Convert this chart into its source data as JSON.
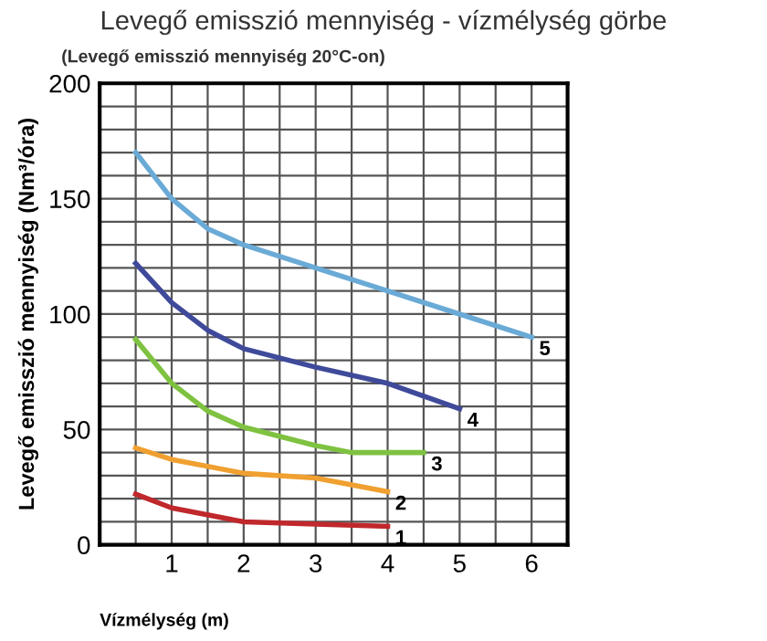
{
  "chart_data": {
    "type": "line",
    "title": "Levegő emisszió mennyiség - vízmélység görbe",
    "subtitle": "(Levegő emisszió mennyiség 20°C-on)",
    "xlabel": "Vízmélység (m)",
    "ylabel": "Levegő emisszió mennyiség (Nm³/óra)",
    "series": [
      {
        "name": "1",
        "color": "#c0282c",
        "x": [
          0.5,
          1,
          2,
          3,
          4
        ],
        "values": [
          22,
          16,
          10,
          9,
          8
        ]
      },
      {
        "name": "2",
        "color": "#f0a030",
        "x": [
          0.5,
          1,
          2,
          3,
          4
        ],
        "values": [
          42,
          37,
          31,
          29,
          23
        ]
      },
      {
        "name": "3",
        "color": "#7fc241",
        "x": [
          0.5,
          1,
          1.5,
          2,
          3,
          3.5,
          4.5
        ],
        "values": [
          89,
          70,
          58,
          51,
          43,
          40,
          40
        ]
      },
      {
        "name": "4",
        "color": "#3f4a9a",
        "x": [
          0.5,
          1,
          1.5,
          2,
          3,
          4,
          5
        ],
        "values": [
          122,
          105,
          93,
          85,
          77,
          70,
          59
        ]
      },
      {
        "name": "5",
        "color": "#6aaad6",
        "x": [
          0.5,
          1,
          1.5,
          2,
          3,
          4,
          5,
          6
        ],
        "values": [
          170,
          150,
          137,
          130,
          120,
          110,
          100,
          90
        ]
      }
    ],
    "xlim": [
      0,
      6.5
    ],
    "ylim": [
      0,
      200
    ],
    "xticks": [
      {
        "value": 0,
        "label": null
      },
      {
        "value": 0.5,
        "label": null
      },
      1,
      {
        "value": 1.5,
        "label": null
      },
      2,
      {
        "value": 2.5,
        "label": null
      },
      3,
      {
        "value": 3.5,
        "label": null
      },
      4,
      {
        "value": 4.5,
        "label": null
      },
      5,
      {
        "value": 5.5,
        "label": null
      },
      6,
      {
        "value": 6.5,
        "label": null
      }
    ],
    "yticks": [
      0,
      {
        "value": 10,
        "label": null
      },
      {
        "value": 20,
        "label": null
      },
      {
        "value": 30,
        "label": null
      },
      {
        "value": 40,
        "label": null
      },
      50,
      {
        "value": 60,
        "label": null
      },
      {
        "value": 70,
        "label": null
      },
      {
        "value": 80,
        "label": null
      },
      {
        "value": 90,
        "label": null
      },
      100,
      {
        "value": 110,
        "label": null
      },
      {
        "value": 120,
        "label": null
      },
      {
        "value": 130,
        "label": null
      },
      {
        "value": 140,
        "label": null
      },
      150,
      {
        "value": 160,
        "label": null
      },
      {
        "value": 170,
        "label": null
      },
      {
        "value": 180,
        "label": null
      },
      {
        "value": 190,
        "label": null
      },
      200
    ],
    "grid": true,
    "legend": false,
    "marker": "none",
    "line_style": "solid"
  }
}
